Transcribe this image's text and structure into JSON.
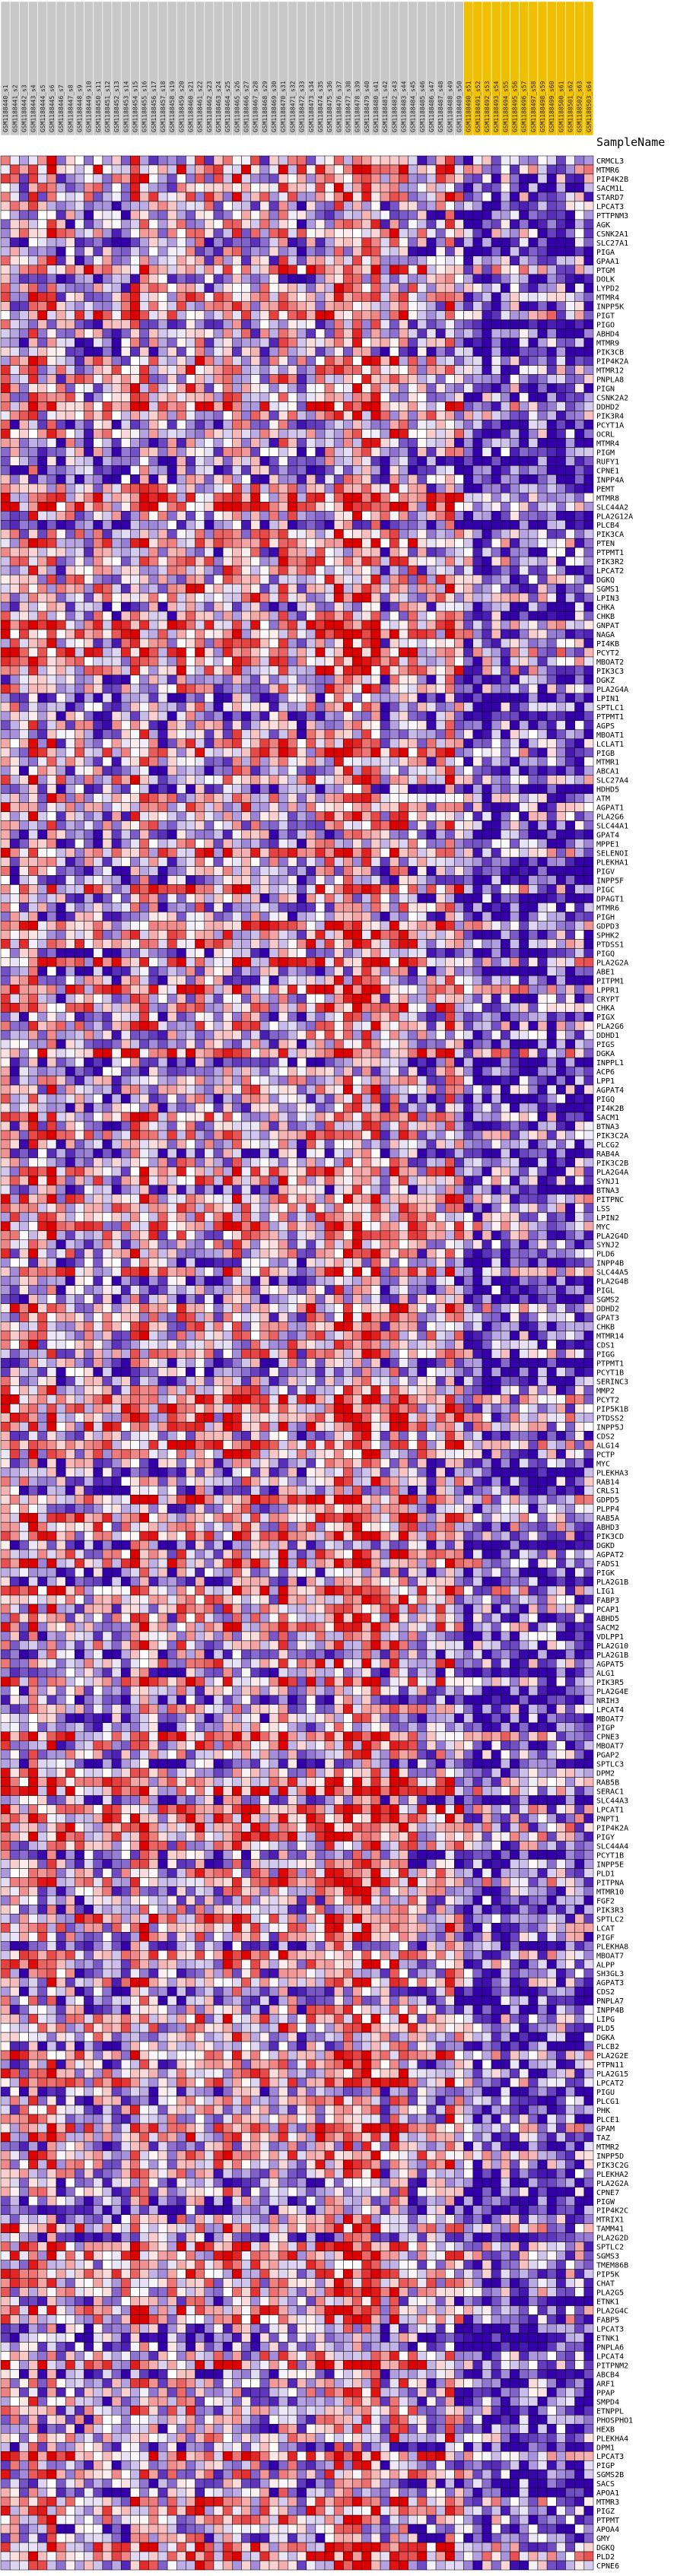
{
  "sample_header": "SampleName",
  "sample_names": [
    "GSM1188440_s1",
    "GSM1188441_s2",
    "GSM1188442_s3",
    "GSM1188443_s4",
    "GSM1188444_s5",
    "GSM1188445_s6",
    "GSM1188446_s7",
    "GSM1188447_s8",
    "GSM1188448_s9",
    "GSM1188449_s10",
    "GSM1188450_s11",
    "GSM1188451_s12",
    "GSM1188452_s13",
    "GSM1188453_s14",
    "GSM1188454_s15",
    "GSM1188455_s16",
    "GSM1188456_s17",
    "GSM1188457_s18",
    "GSM1188458_s19",
    "GSM1188459_s20",
    "GSM1188460_s21",
    "GSM1188461_s22",
    "GSM1188462_s23",
    "GSM1188463_s24",
    "GSM1188464_s25",
    "GSM1188465_s26",
    "GSM1188466_s27",
    "GSM1188467_s28",
    "GSM1188468_s29",
    "GSM1188469_s30",
    "GSM1188470_s31",
    "GSM1188471_s32",
    "GSM1188472_s33",
    "GSM1188473_s34",
    "GSM1188474_s35",
    "GSM1188475_s36",
    "GSM1188476_s37",
    "GSM1188477_s38",
    "GSM1188478_s39",
    "GSM1188479_s40",
    "GSM1188480_s41",
    "GSM1188481_s42",
    "GSM1188482_s43",
    "GSM1188483_s44",
    "GSM1188484_s45",
    "GSM1188485_s46",
    "GSM1188486_s47",
    "GSM1188487_s48",
    "GSM1188488_s49",
    "GSM1188489_s50",
    "GSM1188490_s51",
    "GSM1188491_s52",
    "GSM1188492_s53",
    "GSM1188493_s54",
    "GSM1188494_s55",
    "GSM1188495_s56",
    "GSM1188496_s57",
    "GSM1188497_s58",
    "GSM1188498_s59",
    "GSM1188499_s60",
    "GSM1188500_s61",
    "GSM1188501_s62",
    "GSM1188502_s63",
    "GSM1188503_s64"
  ],
  "highlight_color": "#f0c000",
  "chart_data": {
    "type": "heatmap",
    "title": "",
    "highlighted_columns": [
      50,
      51,
      52,
      53,
      54,
      55,
      56,
      57,
      58,
      59,
      60,
      61,
      62,
      63
    ],
    "color_scale": {
      "low": "#3300aa",
      "mid": "#ffffff",
      "high": "#dd0000",
      "range": [
        -1,
        1
      ]
    },
    "genes": [
      "CRMCL3",
      "MTMR6",
      "PIP4K2B",
      "SACM1L",
      "STARD7",
      "LPCAT3",
      "PTTPNM3",
      "AGK",
      "CSNK2A1",
      "SLC27A1",
      "PIGA",
      "GPAA1",
      "PTGM",
      "DOLK",
      "LYPD2",
      "MTMR4",
      "INPP5K",
      "PIGT",
      "PIGO",
      "ABHD4",
      "MTMR9",
      "PIK3CB",
      "PIP4K2A",
      "MTMR12",
      "PNPLA8",
      "PIGN",
      "CSNK2A2",
      "DDHD2",
      "PIK3R4",
      "PCYT1A",
      "OCRL",
      "MTMR4",
      "PIGM",
      "RUFY1",
      "CPNE1",
      "INPP4A",
      "PEMT",
      "MTMR8",
      "SLC44A2",
      "PLA2G12A",
      "PLCB4",
      "PIK3CA",
      "PTEN",
      "PTPMT1",
      "PIK3R2",
      "LPCAT2",
      "DGKQ",
      "SGMS1",
      "LPIN3",
      "CHKA",
      "CHKB",
      "GNPAT",
      "NAGA",
      "PI4KB",
      "PCYT2",
      "MBOAT2",
      "PIK3C3",
      "DGKZ",
      "PLA2G4A",
      "LPIN1",
      "SPTLC1",
      "PTPMT1",
      "AGPS",
      "MBOAT1",
      "LCLAT1",
      "PIGB",
      "MTMR1",
      "ABCA1",
      "SLC27A4",
      "HDHD5",
      "ATM",
      "AGPAT1",
      "PLA2G6",
      "SLC44A1",
      "GPAT4",
      "MPPE1",
      "SELENOI",
      "PLEKHA1",
      "PIGV",
      "INPP5F",
      "PIGC",
      "DPAGT1",
      "MTMR6",
      "PIGH",
      "GDPD3",
      "SPHK2",
      "PTDSS1",
      "PIGQ",
      "PLA2G2A",
      "ABE1",
      "PITPM1",
      "LPPR1",
      "CRYPT",
      "CHKA",
      "PIGX",
      "PLA2G6",
      "DDHD1",
      "PIGS",
      "DGKA",
      "INPPL1",
      "ACP6",
      "LPP1",
      "AGPAT4",
      "PIGQ",
      "PI4K2B",
      "SACM1",
      "BTNA3",
      "PIK3C2A",
      "PLCG2",
      "RAB4A",
      "PIK3C2B",
      "PLA2G4A",
      "SYNJ1",
      "BTNA3",
      "PITPNC",
      "LSS",
      "LPIN2",
      "MYC",
      "PLA2G4D",
      "SYNJ2",
      "PLD6",
      "INPP4B",
      "SLC44A5",
      "PLA2G4B",
      "PIGL",
      "SGMS2",
      "DDHD2",
      "GPAT3",
      "CHKB",
      "MTMR14",
      "CDS1",
      "PIGG",
      "PTPMT1",
      "PCYT1B",
      "SERINC3",
      "MMP2",
      "PCYT2",
      "PIP5K1B",
      "PTDSS2",
      "INPP5J",
      "CDS2",
      "ALG14",
      "PCTP",
      "MYC",
      "PLEKHA3",
      "RAB14",
      "CRLS1",
      "GDPD5",
      "PLPP4",
      "RAB5A",
      "ABHD3",
      "PIK3CD",
      "DGKD",
      "AGPAT2",
      "FADS1",
      "PIGK",
      "PLA2G1B",
      "LIG1",
      "FABP3",
      "PCAP1",
      "ABHD5",
      "SACM2",
      "VDLPP1",
      "PLA2G10",
      "PLA2G1B",
      "AGPAT5",
      "ALG1",
      "PIK3R5",
      "PLA2G4E",
      "NRIH3",
      "LPCAT4",
      "MBOAT7",
      "PIGP",
      "CPNE3",
      "MBOAT7",
      "PGAP2",
      "SPTLC3",
      "DPM2",
      "RAB5B",
      "SERAC1",
      "SLC44A3",
      "LPCAT1",
      "PNPT1",
      "PIP4K2A",
      "PIGY",
      "SLC44A4",
      "PCYT1B",
      "INPP5E",
      "PLD1",
      "PITPNA",
      "MTMR10",
      "FGF2",
      "PIK3R3",
      "SPTLC2",
      "LCAT",
      "PIGF",
      "PLEKHA8",
      "MBOAT7",
      "ALPP",
      "SH3GL3",
      "AGPAT3",
      "CDS2",
      "PNPLA7",
      "INPP4B",
      "LIPG",
      "PLD5",
      "DGKA",
      "PLCB2",
      "PLA2G2E",
      "PTPN11",
      "PLA2G15",
      "LPCAT2",
      "PIGU",
      "PLCG1",
      "PHK",
      "PLCE1",
      "GPAM",
      "TAZ",
      "MTMR2",
      "INPP5D",
      "PIK3C2G",
      "PLEKHA2",
      "PLA2G2A",
      "CPNE7",
      "PIGW",
      "PIP4K2C",
      "MTRIX1",
      "TAMM41",
      "PLA2G2D",
      "SPTLC2",
      "SGMS3",
      "TMEM86B",
      "PIP5K",
      "CHAT",
      "PLA2G5",
      "ETNK1",
      "PLA2G4C",
      "FABP5",
      "LPCAT3",
      "ETNK1",
      "PNPLA6",
      "LPCAT4",
      "PITPNM2",
      "ABCB4",
      "ARF1",
      "PPAP",
      "SMPD4",
      "ETNPPL",
      "PHOSPHO1",
      "HEXB",
      "PLEKHA4",
      "DPM1",
      "LPCAT3",
      "PIGP",
      "SGMS2B",
      "SACS",
      "APOA1",
      "MTMR3",
      "PIGZ",
      "PTPMT",
      "APOA4",
      "GMY",
      "DGKQ",
      "PLD2",
      "CPNE6"
    ]
  }
}
